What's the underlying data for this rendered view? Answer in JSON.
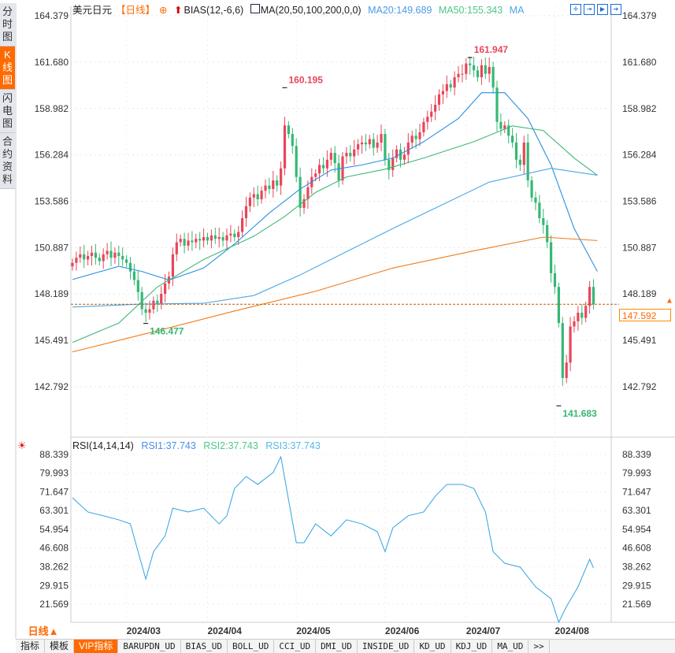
{
  "sidebar": {
    "items": [
      {
        "label": "分时图"
      },
      {
        "label": "K线图",
        "active": true
      },
      {
        "label": "闪电图"
      },
      {
        "label": "合约资料"
      }
    ]
  },
  "legend": {
    "symbol": "美元日元",
    "period": "【日线】",
    "bias": "BIAS(12,-6,6)",
    "ma": "MA(20,50,100,200,0,0)",
    "ma20": "MA20:149.689",
    "ma50": "MA50:155.343",
    "ma_more": "MA"
  },
  "toolbar": {
    "icons": [
      "crosshair-icon",
      "zoom-in-icon",
      "play-icon",
      "forward-icon"
    ]
  },
  "colors": {
    "up": "#e8465a",
    "down": "#35b873",
    "ma20": "#2a8fe0",
    "ma50": "#3cb878",
    "ma100": "#4aa8e8",
    "ma200": "#f07a1a",
    "accent": "#ff6a00",
    "rsi": "#2fa3e6"
  },
  "current_price": "147.592",
  "rsi_legend": {
    "title": "RSI(14,14,14)",
    "rsi1": "RSI1:37.743",
    "rsi2": "RSI2:37.743",
    "rsi3": "RSI3:37.743"
  },
  "period_button": "日线▲",
  "tabs": [
    {
      "label": "指标"
    },
    {
      "label": "模板"
    },
    {
      "label": "VIP指标",
      "active": true
    },
    {
      "label": "BARUPDN_UD"
    },
    {
      "label": "BIAS_UD"
    },
    {
      "label": "BOLL_UD"
    },
    {
      "label": "CCI_UD"
    },
    {
      "label": "DMI_UD"
    },
    {
      "label": "INSIDE_UD"
    },
    {
      "label": "KD_UD"
    },
    {
      "label": "KDJ_UD"
    },
    {
      "label": "MA_UD"
    },
    {
      "label": ">>"
    }
  ],
  "chart_data": [
    {
      "type": "candlestick",
      "price_ticks": [
        "164.379",
        "161.680",
        "158.982",
        "156.284",
        "153.586",
        "150.887",
        "148.189",
        "145.491",
        "142.792"
      ],
      "ylim": [
        141.0,
        164.379
      ],
      "closes": [
        150.0,
        150.3,
        150.5,
        150.2,
        150.4,
        150.6,
        150.3,
        150.1,
        150.5,
        150.7,
        150.3,
        150.6,
        150.4,
        150.2,
        150.0,
        149.5,
        149.0,
        148.3,
        147.3,
        147.1,
        147.3,
        147.8,
        147.6,
        148.2,
        148.8,
        149.2,
        150.5,
        151.2,
        151.4,
        151.0,
        151.3,
        151.2,
        151.4,
        151.3,
        151.5,
        151.3,
        151.6,
        151.4,
        151.5,
        151.3,
        151.6,
        151.7,
        151.5,
        151.8,
        152.6,
        153.3,
        153.8,
        154.0,
        153.7,
        154.2,
        154.5,
        154.3,
        154.8,
        154.5,
        155.5,
        158.0,
        157.5,
        156.8,
        155.0,
        153.2,
        153.7,
        154.4,
        155.0,
        155.2,
        155.7,
        155.5,
        156.0,
        156.4,
        155.8,
        154.8,
        156.2,
        156.4,
        156.2,
        156.6,
        156.9,
        157.0,
        156.9,
        157.2,
        156.7,
        157.0,
        157.5,
        156.0,
        155.4,
        156.1,
        156.6,
        156.0,
        156.3,
        157.0,
        157.4,
        157.2,
        157.6,
        158.2,
        158.5,
        158.8,
        159.2,
        159.8,
        160.0,
        160.4,
        160.2,
        160.8,
        161.0,
        161.0,
        161.6,
        161.5,
        161.2,
        160.8,
        161.5,
        161.0,
        161.4,
        160.2,
        158.2,
        157.8,
        158.0,
        157.4,
        157.0,
        156.0,
        155.7,
        157.0,
        154.8,
        153.8,
        153.5,
        152.6,
        152.2,
        151.2,
        149.4,
        148.6,
        146.5,
        143.3,
        144.2,
        146.3,
        146.6,
        147.1,
        146.8,
        147.5,
        148.6,
        147.592
      ],
      "annotations": [
        {
          "index": 19,
          "value": 146.477,
          "label": "146.477",
          "kind": "low"
        },
        {
          "index": 55,
          "value": 160.195,
          "label": "160.195",
          "kind": "high"
        },
        {
          "index": 103,
          "value": 161.947,
          "label": "161.947",
          "kind": "high"
        },
        {
          "index": 126,
          "value": 141.683,
          "label": "141.683",
          "kind": "low"
        }
      ],
      "ma_series": [
        {
          "name": "MA20",
          "points": [
            [
              0,
              149.03
            ],
            [
              12,
              149.8
            ],
            [
              18,
              149.5
            ],
            [
              25,
              149.0
            ],
            [
              34,
              149.7
            ],
            [
              42,
              151.1
            ],
            [
              51,
              152.9
            ],
            [
              59,
              154.3
            ],
            [
              67,
              155.4
            ],
            [
              75,
              155.7
            ],
            [
              83,
              156.1
            ],
            [
              91,
              157.05
            ],
            [
              100,
              158.4
            ],
            [
              106,
              159.9
            ],
            [
              112,
              159.9
            ],
            [
              118,
              158.4
            ],
            [
              124,
              155.7
            ],
            [
              130,
              152.0
            ],
            [
              136,
              149.5
            ]
          ]
        },
        {
          "name": "MA50",
          "points": [
            [
              0,
              145.37
            ],
            [
              12,
              146.5
            ],
            [
              22,
              148.6
            ],
            [
              34,
              150.2
            ],
            [
              47,
              151.55
            ],
            [
              55,
              152.7
            ],
            [
              63,
              154.1
            ],
            [
              71,
              155.0
            ],
            [
              81,
              155.45
            ],
            [
              91,
              156.1
            ],
            [
              104,
              157.05
            ],
            [
              114,
              157.97
            ],
            [
              122,
              157.7
            ],
            [
              130,
              156.1
            ],
            [
              136,
              155.1
            ]
          ]
        },
        {
          "name": "MA100",
          "points": [
            [
              0,
              147.43
            ],
            [
              18,
              147.6
            ],
            [
              34,
              147.65
            ],
            [
              47,
              148.1
            ],
            [
              59,
              149.3
            ],
            [
              71,
              150.65
            ],
            [
              83,
              152.0
            ],
            [
              96,
              153.4
            ],
            [
              108,
              154.7
            ],
            [
              124,
              155.5
            ],
            [
              136,
              155.1
            ]
          ]
        },
        {
          "name": "MA200",
          "points": [
            [
              0,
              144.82
            ],
            [
              22,
              146.05
            ],
            [
              42,
              147.2
            ],
            [
              63,
              148.35
            ],
            [
              83,
              149.7
            ],
            [
              104,
              150.7
            ],
            [
              122,
              151.5
            ],
            [
              136,
              151.3
            ]
          ]
        }
      ],
      "x_labels": [
        {
          "index": 14,
          "label": "2024/03"
        },
        {
          "index": 35,
          "label": "2024/04"
        },
        {
          "index": 58,
          "label": "2024/05"
        },
        {
          "index": 81,
          "label": "2024/06"
        },
        {
          "index": 102,
          "label": "2024/07"
        },
        {
          "index": 125,
          "label": "2024/08"
        }
      ]
    },
    {
      "type": "line",
      "title": "RSI(14,14,14)",
      "ylim": [
        13,
        88.339
      ],
      "y_ticks": [
        "88.339",
        "79.993",
        "71.647",
        "63.301",
        "54.954",
        "46.608",
        "38.262",
        "29.915",
        "21.569"
      ],
      "points": [
        [
          0,
          69
        ],
        [
          4,
          62.7
        ],
        [
          8,
          61
        ],
        [
          12,
          59.2
        ],
        [
          15,
          57.4
        ],
        [
          17,
          45
        ],
        [
          19,
          32.8
        ],
        [
          21,
          45
        ],
        [
          24,
          52
        ],
        [
          26,
          64.4
        ],
        [
          30,
          62.7
        ],
        [
          34,
          64.4
        ],
        [
          38,
          57.4
        ],
        [
          40,
          61
        ],
        [
          42,
          73.2
        ],
        [
          45,
          78.5
        ],
        [
          48,
          75
        ],
        [
          52,
          80.3
        ],
        [
          54,
          87.3
        ],
        [
          56,
          68
        ],
        [
          58,
          49
        ],
        [
          60,
          49
        ],
        [
          63,
          57.4
        ],
        [
          67,
          52
        ],
        [
          71,
          59.2
        ],
        [
          75,
          57.4
        ],
        [
          79,
          53.9
        ],
        [
          81,
          45
        ],
        [
          83,
          55.6
        ],
        [
          87,
          61
        ],
        [
          91,
          62.7
        ],
        [
          94,
          69.7
        ],
        [
          97,
          75
        ],
        [
          101,
          75
        ],
        [
          104,
          73.2
        ],
        [
          107,
          62.7
        ],
        [
          109,
          45
        ],
        [
          112,
          39.8
        ],
        [
          116,
          38.1
        ],
        [
          120,
          29.3
        ],
        [
          124,
          24
        ],
        [
          126,
          13.5
        ],
        [
          128,
          20.5
        ],
        [
          131,
          29.3
        ],
        [
          134,
          41.6
        ],
        [
          135,
          37.743
        ]
      ]
    }
  ]
}
